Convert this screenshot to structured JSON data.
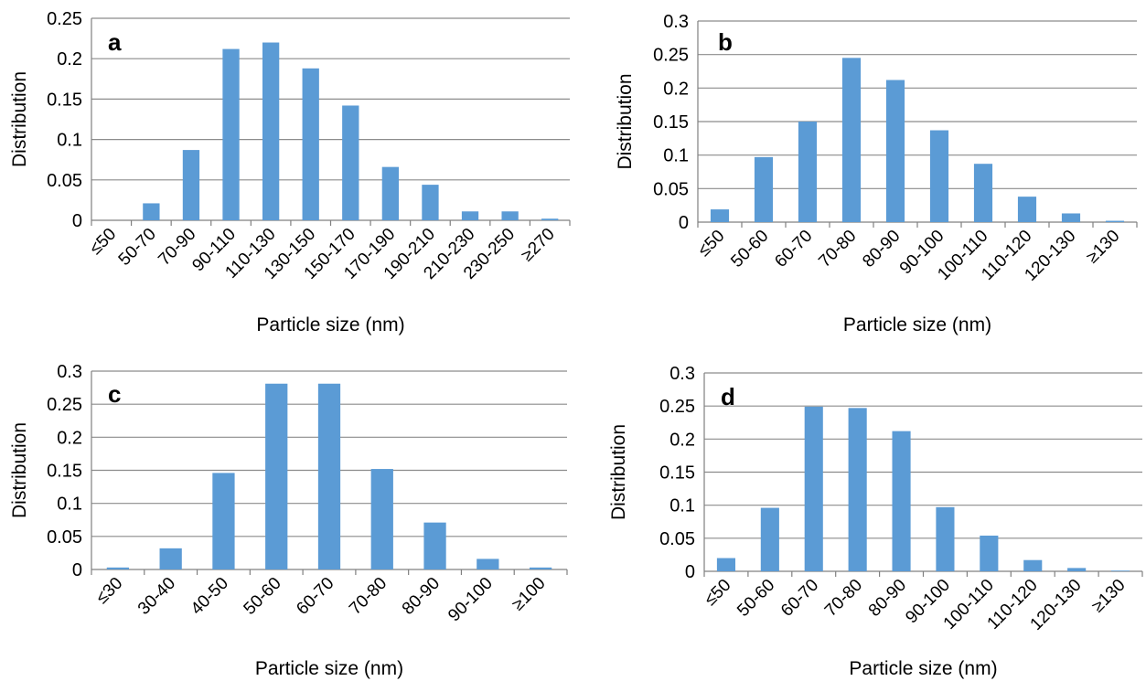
{
  "chart_data": [
    {
      "type": "bar",
      "panel_label": "a",
      "xlabel": "Particle size (nm)",
      "ylabel": "Distribution",
      "ylim": [
        0,
        0.25
      ],
      "yticks": [
        "0",
        "0.05",
        "0.1",
        "0.15",
        "0.2",
        "0.25"
      ],
      "categories": [
        "≤50",
        "50-70",
        "70-90",
        "90-110",
        "110-130",
        "130-150",
        "150-170",
        "170-190",
        "190-210",
        "210-230",
        "230-250",
        "≥270"
      ],
      "values": [
        0.0,
        0.021,
        0.087,
        0.212,
        0.22,
        0.188,
        0.142,
        0.066,
        0.044,
        0.011,
        0.011,
        0.002
      ],
      "grid": true,
      "bar_color": "#5b9bd5"
    },
    {
      "type": "bar",
      "panel_label": "b",
      "xlabel": "Particle size (nm)",
      "ylabel": "Distribution",
      "ylim": [
        0,
        0.3
      ],
      "yticks": [
        "0",
        "0.05",
        "0.1",
        "0.15",
        "0.2",
        "0.25",
        "0.3"
      ],
      "categories": [
        "≤50",
        "50-60",
        "60-70",
        "70-80",
        "80-90",
        "90-100",
        "100-110",
        "110-120",
        "120-130",
        "≥130"
      ],
      "values": [
        0.019,
        0.097,
        0.15,
        0.245,
        0.212,
        0.137,
        0.087,
        0.038,
        0.013,
        0.002
      ],
      "grid": true,
      "bar_color": "#5b9bd5"
    },
    {
      "type": "bar",
      "panel_label": "c",
      "xlabel": "Particle size (nm)",
      "ylabel": "Distribution",
      "ylim": [
        0,
        0.3
      ],
      "yticks": [
        "0",
        "0.05",
        "0.1",
        "0.15",
        "0.2",
        "0.25",
        "0.3"
      ],
      "categories": [
        "≤30",
        "30-40",
        "40-50",
        "50-60",
        "60-70",
        "70-80",
        "80-90",
        "90-100",
        "≥100"
      ],
      "values": [
        0.003,
        0.032,
        0.146,
        0.281,
        0.281,
        0.152,
        0.071,
        0.016,
        0.003
      ],
      "grid": true,
      "bar_color": "#5b9bd5"
    },
    {
      "type": "bar",
      "panel_label": "d",
      "xlabel": "Particle size (nm)",
      "ylabel": "Distribution",
      "ylim": [
        0,
        0.3
      ],
      "yticks": [
        "0",
        "0.05",
        "0.1",
        "0.15",
        "0.2",
        "0.25",
        "0.3"
      ],
      "categories": [
        "≤50",
        "50-60",
        "60-70",
        "70-80",
        "80-90",
        "90-100",
        "100-110",
        "110-120",
        "120-130",
        "≥130"
      ],
      "values": [
        0.02,
        0.096,
        0.249,
        0.247,
        0.212,
        0.097,
        0.054,
        0.017,
        0.005,
        0.001
      ],
      "grid": true,
      "bar_color": "#5b9bd5"
    }
  ],
  "style": {
    "grid_color": "#8c8c8c",
    "axis_color": "#808080"
  }
}
